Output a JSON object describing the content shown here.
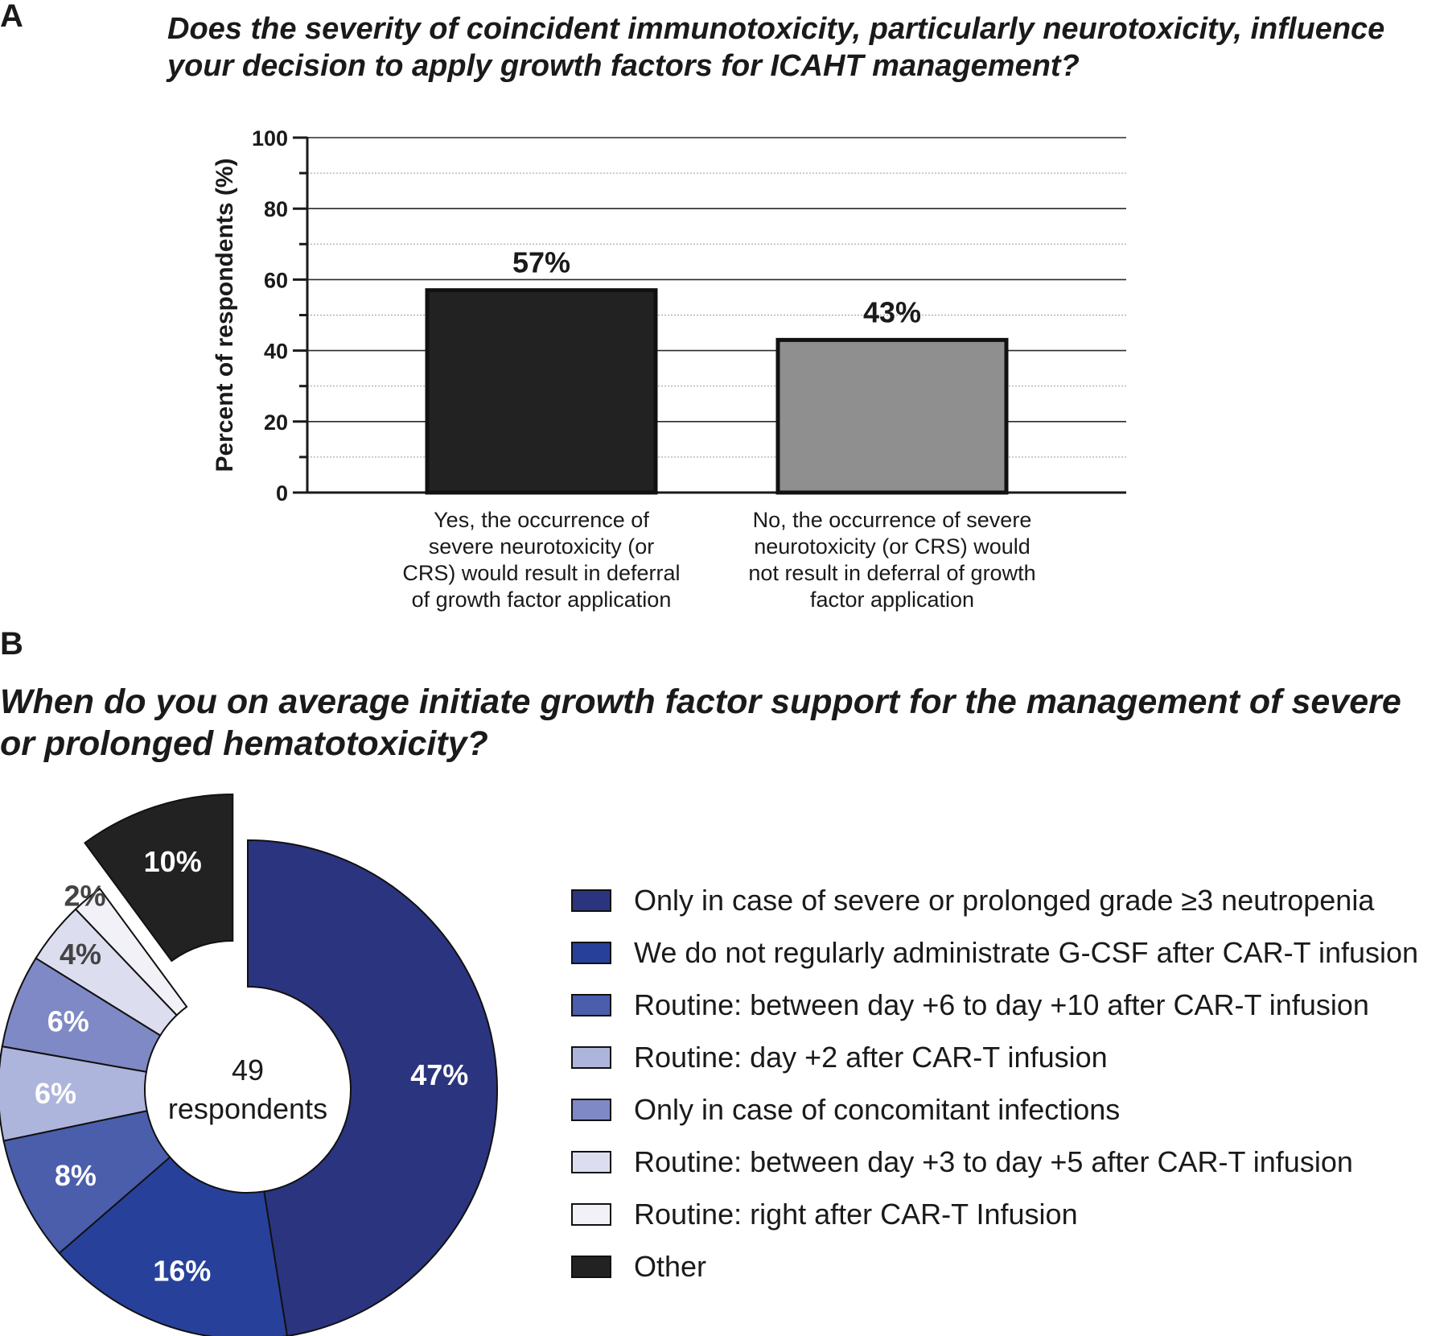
{
  "panel_a": {
    "letter": "A",
    "question": "Does the severity of coincident immunotoxicity, particularly neurotoxicity, influence your decision to apply growth factors for ICAHT management?"
  },
  "panel_b": {
    "letter": "B",
    "question": "When do you on average initiate growth factor support for the management of severe or prolonged hematotoxicity?",
    "center_count": "49",
    "center_label": "respondents"
  },
  "chart_data": [
    {
      "type": "bar",
      "title": "Does the severity of coincident immunotoxicity, particularly neurotoxicity, influence your decision to apply growth factors for ICAHT management?",
      "ylabel": "Percent of respondents (%)",
      "ylim": [
        0,
        100
      ],
      "yticks": [
        0,
        20,
        40,
        60,
        80,
        100
      ],
      "grid": true,
      "categories": [
        "Yes, the occurrence of severe neurotoxicity (or CRS) would result in deferral of growth factor application",
        "No, the occurrence of severe neurotoxicity (or CRS) would not result in deferral of growth factor application"
      ],
      "category_lines": [
        [
          "Yes, the occurrence of",
          "severe neurotoxicity (or",
          "CRS) would result in deferral",
          "of growth factor application"
        ],
        [
          "No, the occurrence of severe",
          "neurotoxicity (or CRS) would",
          "not result in deferral of growth",
          "factor application"
        ]
      ],
      "values": [
        57,
        43
      ],
      "value_labels": [
        "57%",
        "43%"
      ],
      "colors": [
        "#222222",
        "#8f8f8f"
      ]
    },
    {
      "type": "pie",
      "donut": true,
      "title": "When do you on average initiate growth factor support for the management of severe or prolonged hematotoxicity?",
      "legend_position": "right",
      "categories": [
        "Only in case of severe or prolonged grade ≥3 neutropenia",
        "We do not regularly administrate G-CSF after CAR-T infusion",
        "Routine: between day +6 to day +10 after CAR-T infusion",
        "Routine: day +2 after CAR-T infusion",
        "Only in case of concomitant infections",
        "Routine: between day +3 to day +5 after CAR-T infusion",
        "Routine: right after CAR-T Infusion",
        "Other"
      ],
      "values": [
        47,
        16,
        8,
        6,
        6,
        4,
        2,
        10
      ],
      "value_labels": [
        "47%",
        "16%",
        "8%",
        "6%",
        "6%",
        "4%",
        "2%",
        "10%"
      ],
      "colors": [
        "#2b347f",
        "#27419b",
        "#4b5eac",
        "#aeb5dc",
        "#7f89c5",
        "#dcdef0",
        "#f1f1f7",
        "#222222"
      ],
      "exploded": [
        false,
        false,
        false,
        false,
        false,
        false,
        false,
        true
      ]
    }
  ]
}
